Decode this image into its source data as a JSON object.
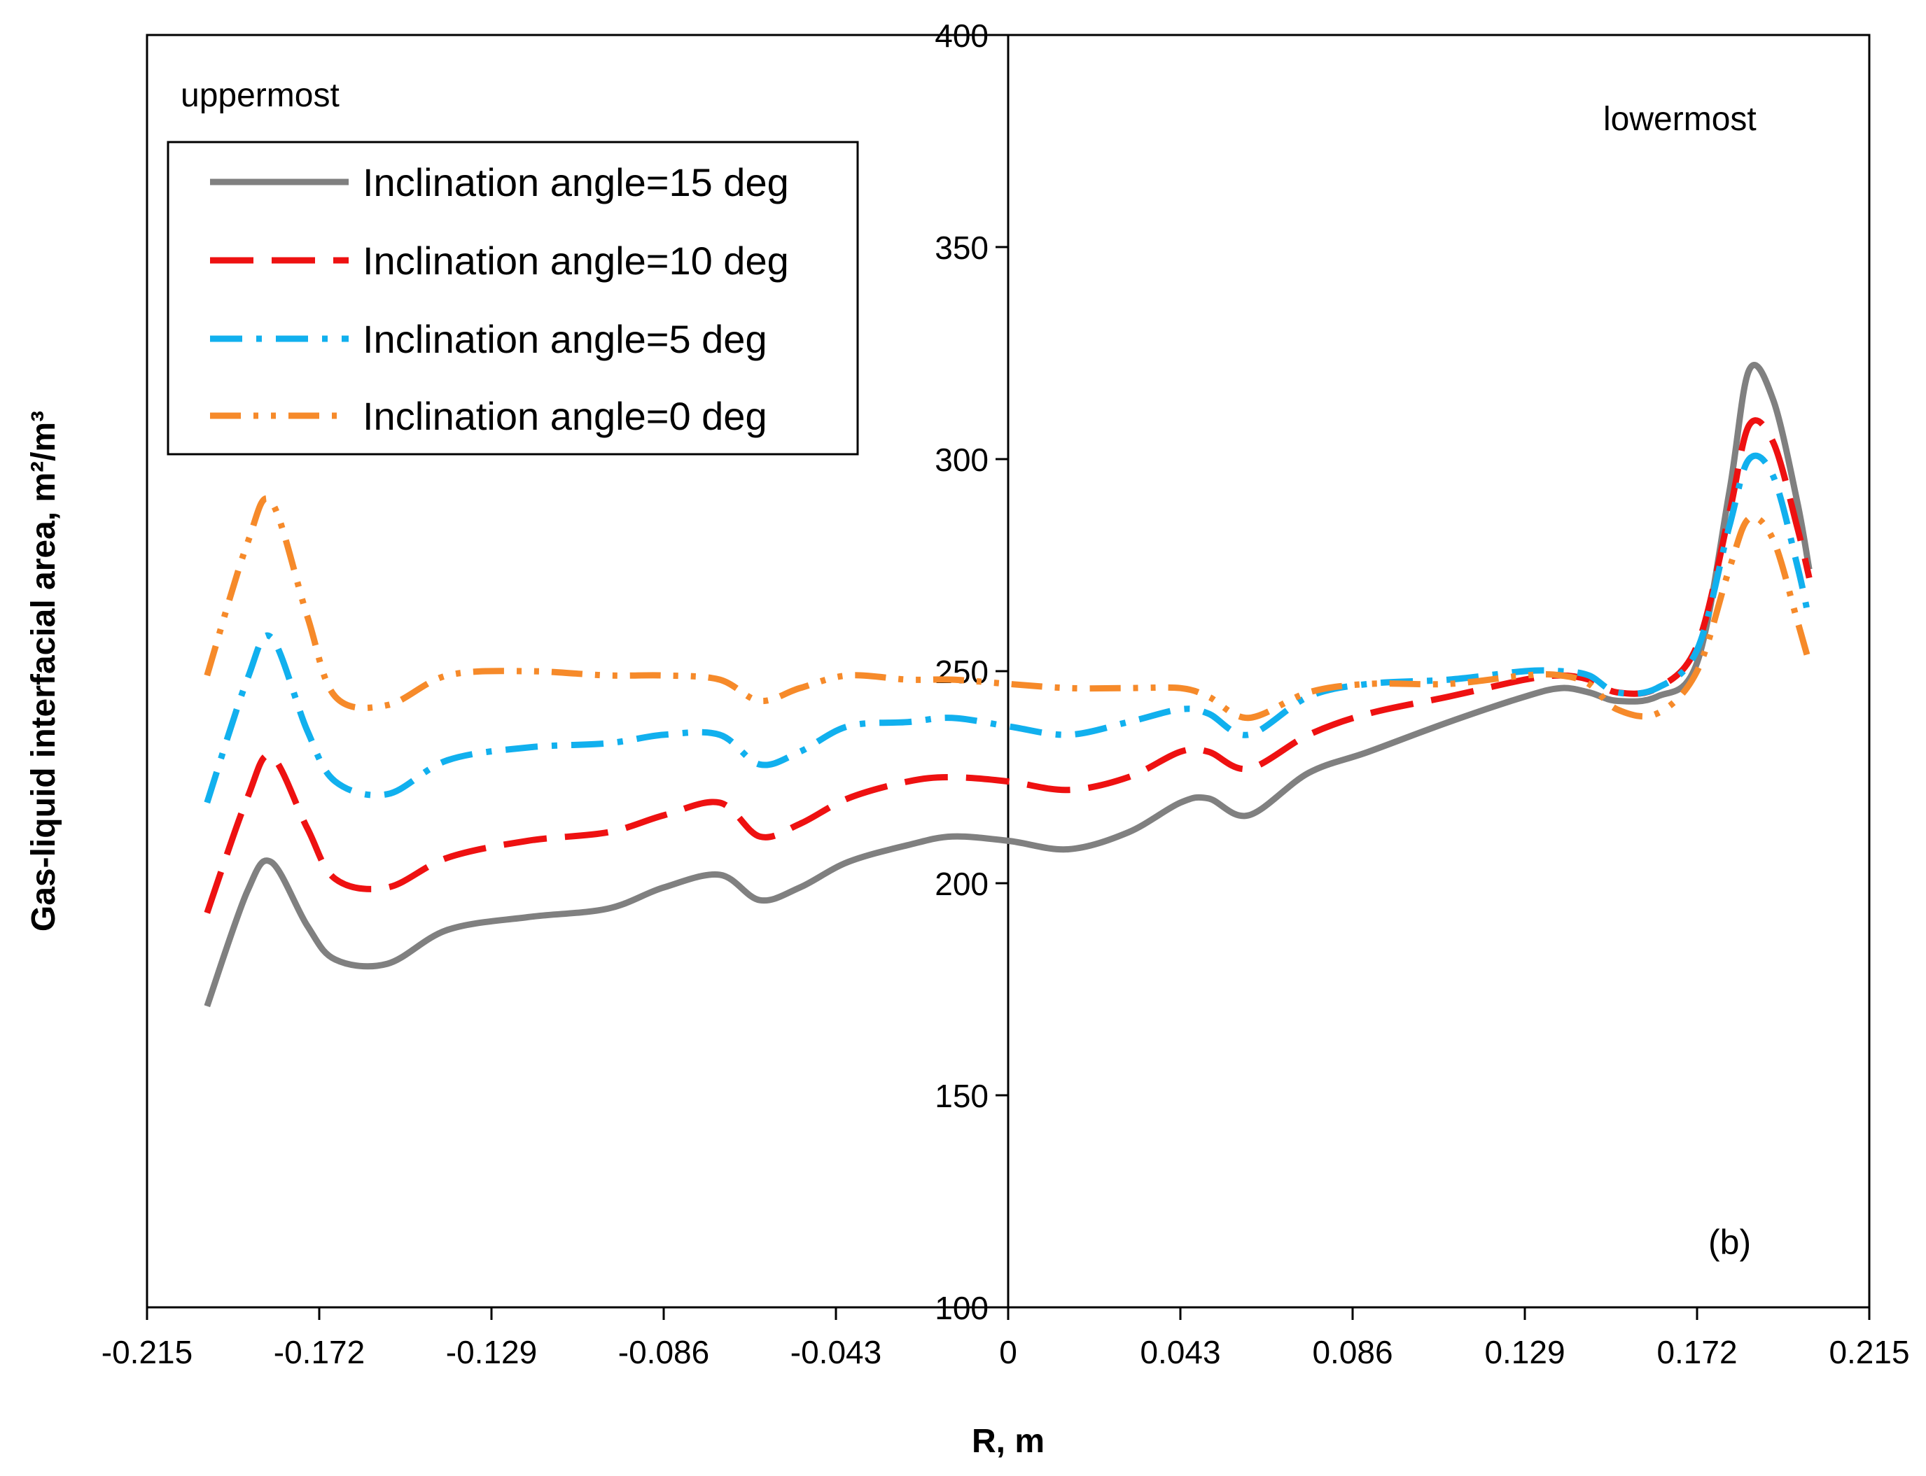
{
  "chart_data": {
    "type": "line",
    "title": "",
    "xlabel": "R, m",
    "ylabel": "Gas-liquid interfacial area, m²/m³",
    "xlim": [
      -0.215,
      0.215
    ],
    "ylim": [
      100,
      400
    ],
    "xticks": [
      -0.215,
      -0.172,
      -0.129,
      -0.086,
      -0.043,
      0,
      0.043,
      0.086,
      0.129,
      0.172,
      0.215
    ],
    "xtick_labels": [
      "-0.215",
      "-0.172",
      "-0.129",
      "-0.086",
      "-0.043",
      "0",
      "0.043",
      "0.086",
      "0.129",
      "0.172",
      "0.215"
    ],
    "yticks": [
      100,
      150,
      200,
      250,
      300,
      350,
      400
    ],
    "ytick_labels": [
      "100",
      "150",
      "200",
      "250",
      "300",
      "350",
      "400"
    ],
    "grid": false,
    "legend_position": "top-left",
    "annotations": {
      "left": "uppermost",
      "right": "lowermost",
      "panel": "(b)"
    },
    "x": [
      -0.2,
      -0.19,
      -0.184,
      -0.175,
      -0.168,
      -0.155,
      -0.14,
      -0.12,
      -0.1,
      -0.086,
      -0.072,
      -0.062,
      -0.052,
      -0.04,
      -0.025,
      -0.014,
      0,
      0.015,
      0.03,
      0.043,
      0.05,
      0.06,
      0.075,
      0.09,
      0.11,
      0.129,
      0.138,
      0.145,
      0.152,
      0.162,
      0.172,
      0.18,
      0.185,
      0.191,
      0.197,
      0.2
    ],
    "series": [
      {
        "name": "Inclination angle=15 deg",
        "color": "#808080",
        "dash": "solid",
        "values": [
          171,
          198,
          205,
          190,
          182,
          181,
          189,
          192,
          194,
          199,
          202,
          196,
          199,
          205,
          209,
          211,
          210,
          208,
          212,
          219,
          220,
          216,
          226,
          231,
          238,
          244,
          246,
          245,
          243,
          244,
          252,
          292,
          321,
          314,
          290,
          274
        ]
      },
      {
        "name": "Inclination angle=10 deg",
        "color": "#ee1111",
        "dash": "long-dash",
        "values": [
          193,
          220,
          230,
          213,
          201,
          199,
          206,
          210,
          212,
          216,
          219,
          211,
          214,
          220,
          224,
          225,
          224,
          222,
          225,
          231,
          231,
          227,
          235,
          240,
          244,
          248,
          249,
          248,
          245,
          246,
          256,
          287,
          308,
          304,
          284,
          272
        ]
      },
      {
        "name": "Inclination angle=5 deg",
        "color": "#11b0ee",
        "dash": "dash-dot",
        "values": [
          219,
          248,
          258,
          236,
          224,
          221,
          229,
          232,
          233,
          235,
          235,
          228,
          231,
          237,
          238,
          239,
          237,
          235,
          238,
          241,
          240,
          235,
          244,
          247,
          248,
          250,
          250,
          249,
          245,
          246,
          255,
          284,
          300,
          296,
          275,
          262
        ]
      },
      {
        "name": "Inclination angle=0 deg",
        "color": "#f68a2a",
        "dash": "dash-dot-dot",
        "values": [
          249,
          280,
          290,
          263,
          244,
          242,
          249,
          250,
          249,
          249,
          248,
          243,
          246,
          249,
          248,
          248,
          247,
          246,
          246,
          246,
          244,
          239,
          245,
          247,
          247,
          249,
          249,
          247,
          241,
          240,
          250,
          274,
          286,
          281,
          262,
          252
        ]
      }
    ]
  }
}
